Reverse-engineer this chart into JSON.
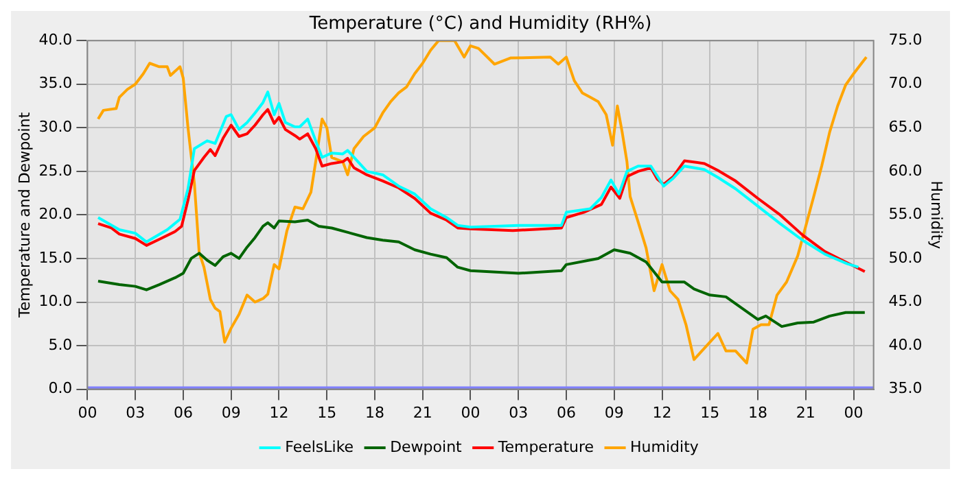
{
  "chart_data": {
    "type": "line",
    "title": "Temperature (°C) and Humidity (RH%)",
    "ylabel": "Temperature and Dewpoint",
    "y2label": "Humidity",
    "xlim": [
      0,
      49.25
    ],
    "xticks": [
      {
        "value": 0,
        "label": "00"
      },
      {
        "value": 3,
        "label": "03"
      },
      {
        "value": 6,
        "label": "06"
      },
      {
        "value": 9,
        "label": "09"
      },
      {
        "value": 12,
        "label": "12"
      },
      {
        "value": 15,
        "label": "15"
      },
      {
        "value": 18,
        "label": "18"
      },
      {
        "value": 21,
        "label": "21"
      },
      {
        "value": 24,
        "label": "00"
      },
      {
        "value": 27,
        "label": "03"
      },
      {
        "value": 30,
        "label": "06"
      },
      {
        "value": 33,
        "label": "09"
      },
      {
        "value": 36,
        "label": "12"
      },
      {
        "value": 39,
        "label": "15"
      },
      {
        "value": 42,
        "label": "18"
      },
      {
        "value": 45,
        "label": "21"
      },
      {
        "value": 48,
        "label": "00"
      }
    ],
    "ylim": [
      0,
      40
    ],
    "yticks": [
      {
        "value": 0,
        "label": "0.0"
      },
      {
        "value": 5,
        "label": "5.0"
      },
      {
        "value": 10,
        "label": "10.0"
      },
      {
        "value": 15,
        "label": "15.0"
      },
      {
        "value": 20,
        "label": "20.0"
      },
      {
        "value": 25,
        "label": "25.0"
      },
      {
        "value": 30,
        "label": "30.0"
      },
      {
        "value": 35,
        "label": "35.0"
      },
      {
        "value": 40,
        "label": "40.0"
      }
    ],
    "y2lim": [
      35,
      75
    ],
    "y2ticks": [
      {
        "value": 35,
        "label": "35.0"
      },
      {
        "value": 40,
        "label": "40.0"
      },
      {
        "value": 45,
        "label": "45.0"
      },
      {
        "value": 50,
        "label": "50.0"
      },
      {
        "value": 55,
        "label": "55.0"
      },
      {
        "value": 60,
        "label": "60.0"
      },
      {
        "value": 65,
        "label": "65.0"
      },
      {
        "value": 70,
        "label": "70.0"
      },
      {
        "value": 75,
        "label": "75.0"
      }
    ],
    "grid": true,
    "legend": "bottom",
    "marker": "none",
    "line_style": "solid",
    "ref_lines": [
      {
        "axis": "y",
        "value": 0,
        "color": "#8080ff"
      }
    ],
    "series": [
      {
        "name": "FeelsLike",
        "color": "#00ffff",
        "x": [
          0.67,
          2,
          3,
          3.7,
          5,
          5.8,
          6.3,
          6.7,
          7.5,
          8,
          8.7,
          9,
          9.5,
          10,
          10.5,
          11,
          11.3,
          11.7,
          12,
          12.4,
          13,
          13.3,
          13.8,
          14.3,
          14.7,
          15.3,
          16,
          16.3,
          17,
          17.5,
          18.5,
          19.5,
          20.5,
          21.5,
          22.5,
          23.2,
          24,
          27,
          29.7,
          30,
          31.5,
          32.2,
          32.8,
          33.3,
          33.8,
          34.5,
          35.3,
          36.1,
          36.7,
          37.4,
          38.65,
          39.5,
          40.6,
          42,
          43.4,
          44.8,
          46.2,
          47.6,
          48.3
        ],
        "values": [
          19.7,
          18.3,
          17.9,
          16.9,
          18.3,
          19.5,
          23,
          27.6,
          28.5,
          28.2,
          31.3,
          31.5,
          29.8,
          30.6,
          31.7,
          32.9,
          34.1,
          31.5,
          32.8,
          30.6,
          30.1,
          30.1,
          31,
          28.5,
          26.6,
          27.1,
          27,
          27.4,
          26,
          25,
          24.6,
          23.3,
          22.4,
          20.7,
          19.7,
          18.8,
          18.6,
          18.8,
          18.8,
          20.3,
          20.7,
          22,
          24,
          22.4,
          25,
          25.6,
          25.6,
          23.3,
          24.2,
          25.6,
          25.2,
          24.3,
          23,
          21,
          19,
          17.1,
          15.5,
          14.4,
          14
        ]
      },
      {
        "name": "Dewpoint",
        "color": "#006400",
        "x": [
          0.67,
          2,
          3,
          3.7,
          4.5,
          5.5,
          6,
          6.5,
          7,
          7.5,
          8,
          8.5,
          9,
          9.5,
          10,
          10.5,
          11,
          11.3,
          11.7,
          12,
          13,
          13.8,
          14.5,
          15.3,
          16.5,
          17.5,
          18.5,
          19.5,
          20.5,
          21.5,
          22.5,
          23.2,
          24,
          26,
          27,
          29.7,
          30,
          32,
          33,
          34,
          35,
          36,
          37.4,
          38,
          39,
          40,
          41,
          42,
          42.5,
          43.5,
          44.5,
          45.5,
          46.5,
          47.5,
          48.7
        ],
        "values": [
          12.4,
          12,
          11.8,
          11.4,
          12,
          12.8,
          13.3,
          15,
          15.6,
          14.8,
          14.2,
          15.2,
          15.6,
          15,
          16.3,
          17.4,
          18.7,
          19.1,
          18.5,
          19.3,
          19.2,
          19.4,
          18.7,
          18.5,
          17.9,
          17.4,
          17.1,
          16.9,
          16,
          15.5,
          15.1,
          14,
          13.6,
          13.4,
          13.3,
          13.6,
          14.3,
          15,
          16,
          15.6,
          14.6,
          12.3,
          12.3,
          11.5,
          10.8,
          10.6,
          9.3,
          8,
          8.4,
          7.2,
          7.6,
          7.7,
          8.4,
          8.8,
          8.8
        ]
      },
      {
        "name": "Temperature",
        "color": "#ff0000",
        "x": [
          0.67,
          1.5,
          2,
          3,
          3.7,
          4.5,
          5.5,
          5.9,
          6.3,
          6.7,
          7.3,
          7.7,
          8,
          8.5,
          9,
          9.5,
          10,
          10.5,
          11,
          11.3,
          11.7,
          12,
          12.4,
          13,
          13.3,
          13.8,
          14.3,
          14.7,
          15.3,
          16,
          16.3,
          16.7,
          17.5,
          18.5,
          19.5,
          20.5,
          21.5,
          22.5,
          23.2,
          24,
          26.65,
          29.7,
          30,
          31.1,
          32.2,
          32.8,
          33.35,
          33.8,
          34.5,
          35.3,
          35.7,
          36.1,
          36.7,
          37.4,
          38.65,
          39.5,
          40.6,
          42,
          43.4,
          44.8,
          46.2,
          47.6,
          48.7
        ],
        "values": [
          19,
          18.5,
          17.8,
          17.3,
          16.5,
          17.2,
          18.1,
          18.7,
          21.7,
          25.1,
          26.6,
          27.5,
          26.8,
          28.8,
          30.3,
          29,
          29.3,
          30.3,
          31.5,
          32.1,
          30.5,
          31.2,
          29.8,
          29.1,
          28.7,
          29.3,
          27.6,
          25.6,
          25.9,
          26.1,
          26.5,
          25.4,
          24.6,
          23.9,
          23.1,
          21.9,
          20.2,
          19.4,
          18.5,
          18.4,
          18.2,
          18.5,
          19.7,
          20.3,
          21.2,
          23.2,
          21.9,
          24.4,
          25,
          25.4,
          24.1,
          23.5,
          24.4,
          26.2,
          25.9,
          25.1,
          23.9,
          21.9,
          20,
          17.7,
          15.8,
          14.5,
          13.5
        ]
      },
      {
        "name": "Humidity",
        "color": "#ffa500",
        "axis": "y2",
        "x": [
          0.67,
          1,
          1.8,
          2,
          2.5,
          3,
          3.5,
          3.9,
          4.5,
          5,
          5.2,
          5.8,
          6,
          6.3,
          6.7,
          7,
          7.3,
          7.7,
          8,
          8.3,
          8.6,
          9,
          9.5,
          10,
          10.5,
          11,
          11.3,
          11.7,
          12,
          12.5,
          13,
          13.5,
          14,
          14.3,
          14.7,
          15,
          15.3,
          16,
          16.3,
          16.7,
          17.3,
          18,
          18.5,
          19,
          19.5,
          20,
          20.5,
          21,
          21.5,
          22,
          23,
          23.6,
          24,
          24.5,
          25.5,
          26.5,
          29,
          29.5,
          30,
          30.5,
          31,
          31.5,
          32,
          32.5,
          32.9,
          33.2,
          33.5,
          33.8,
          34,
          34.5,
          35,
          35.5,
          36,
          36.5,
          37,
          37.5,
          38,
          38.5,
          39,
          39.5,
          40,
          40.6,
          41.3,
          41.7,
          42.2,
          42.7,
          43.2,
          43.8,
          44.5,
          45,
          45.5,
          46,
          46.5,
          47,
          47.5,
          48,
          48.5,
          48.8
        ],
        "values": [
          66,
          67,
          67.2,
          68.5,
          69.4,
          70,
          71.2,
          72.4,
          72,
          72,
          71,
          72,
          70.7,
          65,
          58.6,
          50.7,
          49,
          45.3,
          44.3,
          43.9,
          40.4,
          42,
          43.6,
          45.8,
          45,
          45.4,
          45.9,
          49.3,
          48.8,
          53.2,
          55.9,
          55.7,
          57.6,
          61.1,
          66,
          65,
          61.6,
          61.1,
          59.6,
          62.6,
          64,
          65,
          66.7,
          68,
          69,
          69.7,
          71.2,
          72.4,
          73.9,
          75,
          75,
          73.1,
          74.4,
          74.1,
          72.3,
          73,
          73.1,
          72.3,
          73.1,
          70.4,
          69,
          68.5,
          68,
          66.5,
          63,
          67.5,
          64.5,
          61.1,
          57.1,
          54.2,
          51.2,
          46.3,
          49.3,
          46.3,
          45.3,
          42.4,
          38.4,
          39.4,
          40.4,
          41.4,
          39.4,
          39.4,
          38,
          41.9,
          42.4,
          42.4,
          45.8,
          47.3,
          50.3,
          53.7,
          57.1,
          60.6,
          64.5,
          67.5,
          69.9,
          71.2,
          72.4,
          73.1
        ]
      }
    ]
  }
}
